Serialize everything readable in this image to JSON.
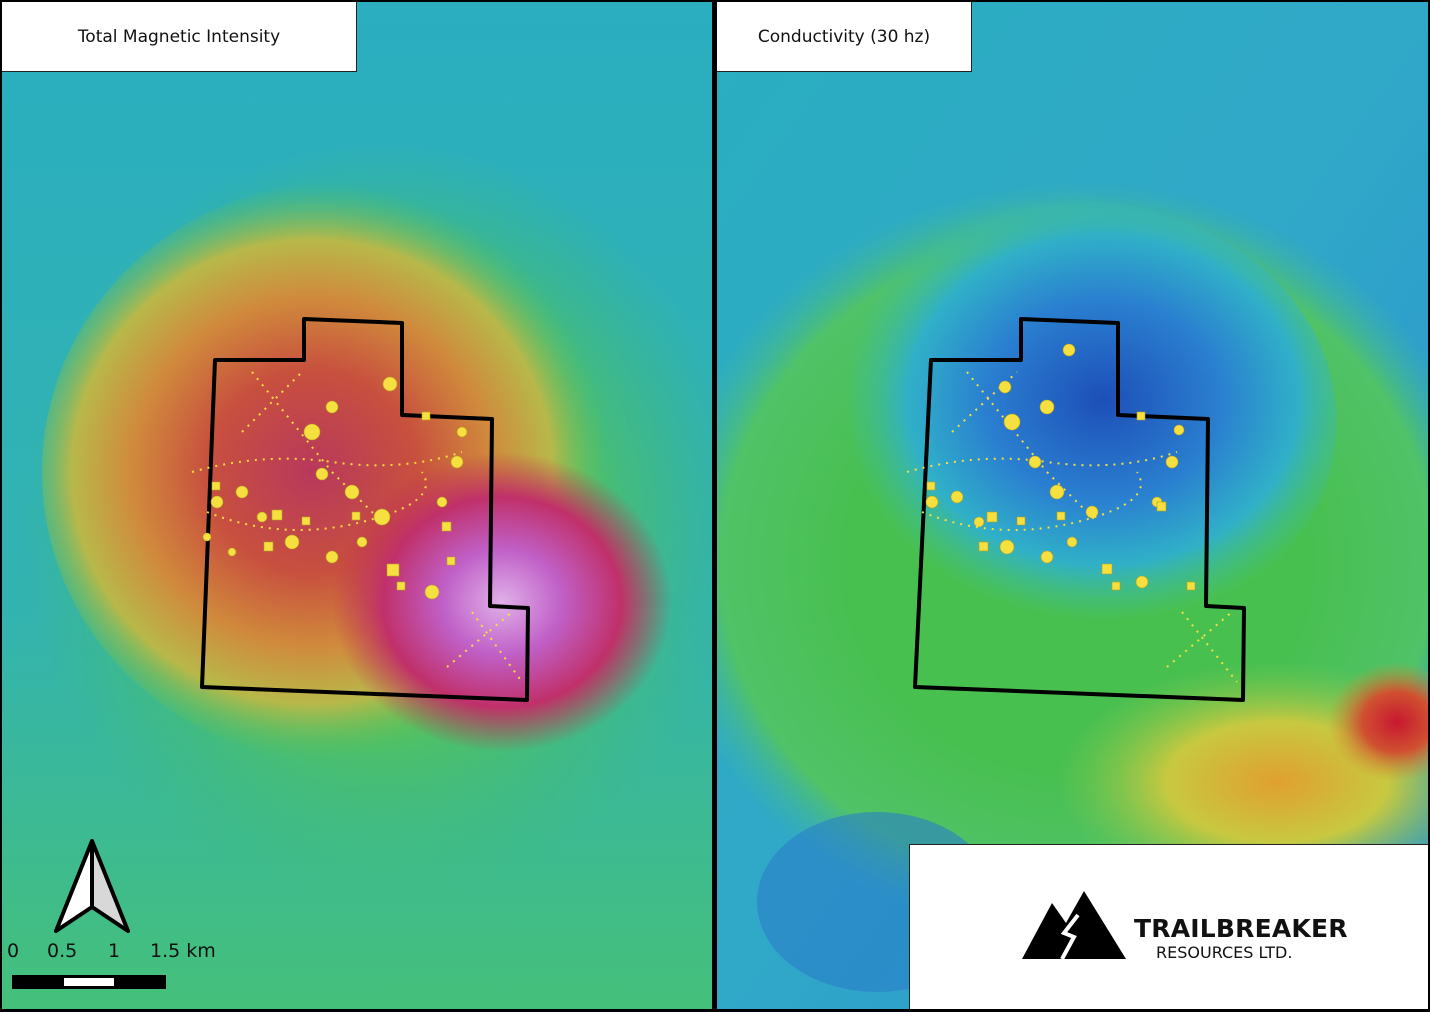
{
  "panels": {
    "left": {
      "title": "Total Magnetic Intensity"
    },
    "right": {
      "title": "Conductivity (30 hz)"
    }
  },
  "scale_bar": {
    "labels": [
      "0",
      "0.5",
      "1",
      "1.5 km"
    ],
    "unit": "km"
  },
  "north_arrow": {
    "icon": "north-arrow-icon"
  },
  "logo": {
    "name": "TRAILBREAKER",
    "subtitle": "RESOURCES LTD.",
    "icon": "mountain-logo-icon"
  },
  "colors": {
    "low": "#1f9fd0",
    "mid": "#3ec75a",
    "high_mag": "#c0306a",
    "peak_mag": "#c87ad8",
    "low_cond": "#1f5fc0",
    "samples": "#f5e040",
    "claim_outline": "#000000"
  }
}
